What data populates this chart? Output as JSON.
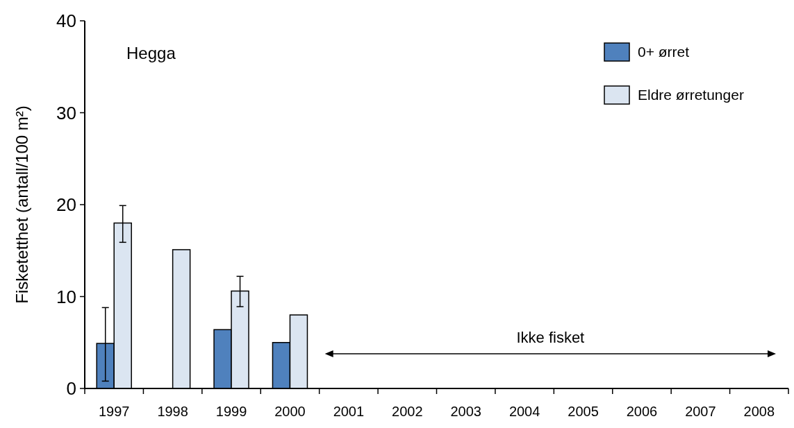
{
  "chart_data": {
    "type": "bar",
    "ylabel": "Fisketetthet (antall/100 m²)",
    "categories": [
      "1997",
      "1998",
      "1999",
      "2000",
      "2001",
      "2002",
      "2003",
      "2004",
      "2005",
      "2006",
      "2007",
      "2008"
    ],
    "series": [
      {
        "name": "0+ ørret",
        "color": "#4f81bd",
        "values": [
          4.9,
          null,
          6.4,
          5.0,
          null,
          null,
          null,
          null,
          null,
          null,
          null,
          null
        ],
        "errors": [
          [
            0.8,
            8.8
          ],
          null,
          null,
          null,
          null,
          null,
          null,
          null,
          null,
          null,
          null,
          null
        ]
      },
      {
        "name": "Eldre ørretunger",
        "color": "#dbe5f1",
        "values": [
          18.0,
          15.1,
          10.6,
          8.0,
          null,
          null,
          null,
          null,
          null,
          null,
          null,
          null
        ],
        "errors": [
          [
            15.9,
            19.9
          ],
          null,
          [
            8.9,
            12.2
          ],
          null,
          null,
          null,
          null,
          null,
          null,
          null,
          null,
          null
        ]
      }
    ],
    "ylim": [
      0,
      40
    ],
    "yticks": [
      0,
      10,
      20,
      30,
      40
    ],
    "grid": false,
    "legend": "top right",
    "annotations": [
      "Hegga",
      "Ikke fisket"
    ]
  }
}
